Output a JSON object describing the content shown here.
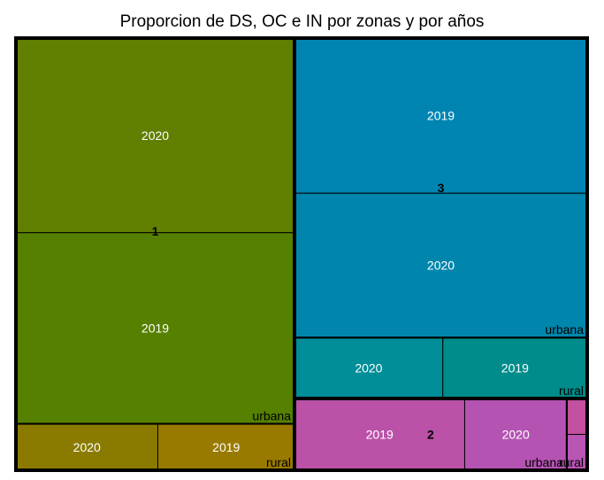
{
  "chart_data": {
    "type": "treemap",
    "title": "Proporcion de DS, OC e IN por zonas y por años",
    "groups": [
      {
        "label": "1",
        "zones": [
          {
            "label": "urbana",
            "cells": [
              {
                "label": "2020",
                "value": 22.2,
                "color": "#617f00"
              },
              {
                "label": "2019",
                "value": 21.8,
                "color": "#568000"
              }
            ]
          },
          {
            "label": "rural",
            "cells": [
              {
                "label": "2020",
                "value": 2.7,
                "color": "#8a7b00"
              },
              {
                "label": "2019",
                "value": 2.6,
                "color": "#997a00"
              }
            ]
          }
        ]
      },
      {
        "label": "3",
        "zones": [
          {
            "label": "urbana",
            "cells": [
              {
                "label": "2019",
                "value": 18.6,
                "color": "#0085b3"
              },
              {
                "label": "2020",
                "value": 17.3,
                "color": "#0086ad"
              }
            ]
          },
          {
            "label": "rural",
            "cells": [
              {
                "label": "2020",
                "value": 3.7,
                "color": "#008e98"
              },
              {
                "label": "2019",
                "value": 3.6,
                "color": "#008c8a"
              }
            ]
          }
        ]
      },
      {
        "label": "2",
        "zones": [
          {
            "label": "urbana",
            "cells": [
              {
                "label": "2019",
                "value": 5.0,
                "color": "#bb52a8"
              },
              {
                "label": "2020",
                "value": 3.0,
                "color": "#b553b3"
              }
            ]
          },
          {
            "label": "rural",
            "cells": [
              {
                "label": "",
                "value": 0.3,
                "color": "#c350a0"
              },
              {
                "label": "",
                "value": 0.3,
                "color": "#b955b3"
              }
            ]
          }
        ]
      }
    ]
  }
}
